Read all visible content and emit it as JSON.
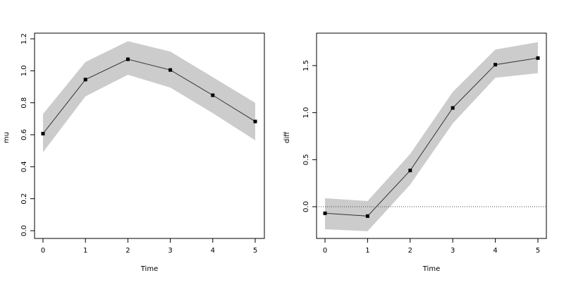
{
  "chart_data": [
    {
      "type": "line",
      "xlabel": "Time",
      "ylabel": "mu",
      "x": [
        0,
        1,
        2,
        3,
        4,
        5
      ],
      "series": [
        {
          "values": [
            0.607,
            0.945,
            1.072,
            1.005,
            0.847,
            0.683
          ]
        }
      ],
      "band": {
        "lower": [
          0.49,
          0.84,
          0.975,
          0.895,
          0.735,
          0.565
        ],
        "upper": [
          0.73,
          1.055,
          1.185,
          1.12,
          0.96,
          0.8
        ]
      },
      "xlim": [
        0,
        5
      ],
      "ylim": [
        0.0,
        1.2
      ],
      "xticks": [
        "0",
        "1",
        "2",
        "3",
        "4",
        "5"
      ],
      "yticks": [
        "0.0",
        "0.2",
        "0.4",
        "0.6",
        "0.8",
        "1.0",
        "1.2"
      ],
      "band_color": "#cccccc",
      "line_color": "#333333"
    },
    {
      "type": "line",
      "xlabel": "Time",
      "ylabel": "diff",
      "x": [
        0,
        1,
        2,
        3,
        4,
        5
      ],
      "series": [
        {
          "values": [
            -0.07,
            -0.1,
            0.385,
            1.05,
            1.51,
            1.58
          ]
        }
      ],
      "band": {
        "lower": [
          -0.24,
          -0.26,
          0.235,
          0.885,
          1.37,
          1.42
        ],
        "upper": [
          0.09,
          0.06,
          0.56,
          1.22,
          1.67,
          1.75
        ]
      },
      "reference_line": {
        "y": 0,
        "style": "dotted"
      },
      "xlim": [
        0,
        5
      ],
      "ylim": [
        0.0,
        1.5
      ],
      "xticks": [
        "0",
        "1",
        "2",
        "3",
        "4",
        "5"
      ],
      "yticks": [
        "0.0",
        "0.5",
        "1.0",
        "1.5"
      ],
      "band_color": "#cccccc",
      "line_color": "#333333"
    }
  ]
}
